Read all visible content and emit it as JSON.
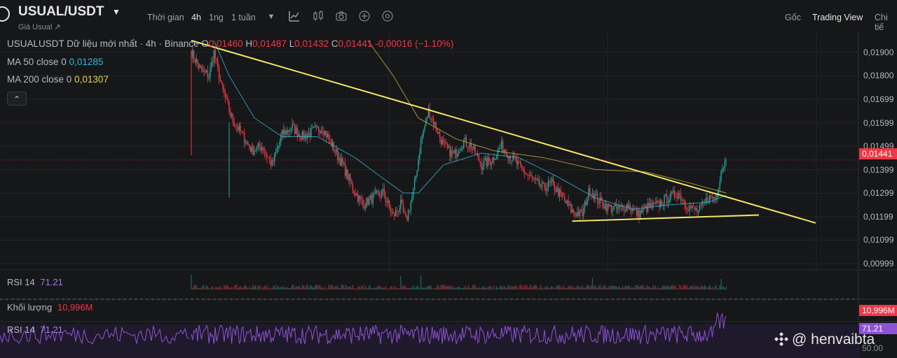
{
  "header": {
    "symbol": "USUAL/USDT",
    "subtitle": "Giá Usual ↗",
    "time_label": "Thời gian",
    "intervals": [
      "4h",
      "1ng",
      "1 tuần"
    ],
    "active_interval": "4h",
    "right_nav": [
      "Gốc",
      "Trading View",
      "Chi tiế"
    ],
    "right_nav_active": "Trading View"
  },
  "legend": {
    "title": "USUALUSDT Dữ liệu mới nhất · 4h · Binance",
    "o_label": "O",
    "o": "0,01460",
    "h_label": "H",
    "h": "0,01487",
    "l_label": "L",
    "l": "0,01432",
    "c_label": "C",
    "c": "0,01441",
    "change": "-0,00016 (−1.10%)",
    "ma50_label": "MA 50 close 0",
    "ma50_value": "0,01285",
    "ma200_label": "MA 200 close 0",
    "ma200_value": "0,01307",
    "collapse": "⌃"
  },
  "panes": {
    "rsi_top_label": "RSI 14",
    "rsi_top_value": "71.21",
    "volume_label": "Khối lượng",
    "volume_value": "10,996M",
    "rsi_label": "RSI 14",
    "rsi_value": "71.21",
    "volume_tag": "10,996M",
    "rsi_tag": "71.21",
    "rsi_50_tag": "50.00"
  },
  "price_axis": {
    "ticks": [
      "0,01900",
      "0,01800",
      "0,01699",
      "0,01599",
      "0,01499",
      "0,01399",
      "0,01299",
      "0,01199",
      "0,01099",
      "0,00999"
    ],
    "current_price": "0,01441"
  },
  "watermark": "@ henvaibta",
  "colors": {
    "up": "#26a69a",
    "down": "#f23645",
    "ma50": "#2fb9d6",
    "ma200": "#c9b441",
    "trendline": "#f5e663",
    "rsi": "#8e52d6"
  },
  "chart_data": {
    "type": "candlestick",
    "title": "USUALUSDT Dữ liệu mới nhất · 4h · Binance",
    "ylim": [
      0.0096,
      0.0195
    ],
    "y_ticks": [
      0.019,
      0.018,
      0.01699,
      0.01599,
      0.01499,
      0.01399,
      0.01299,
      0.01199,
      0.01099,
      0.00999
    ],
    "grid": true,
    "last_close": 0.01441,
    "price_path": [
      [
        0,
        0.019
      ],
      [
        8,
        0.0182
      ],
      [
        14,
        0.018
      ],
      [
        18,
        0.019
      ],
      [
        24,
        0.0175
      ],
      [
        32,
        0.0162
      ],
      [
        40,
        0.0155
      ],
      [
        48,
        0.0148
      ],
      [
        56,
        0.015
      ],
      [
        64,
        0.0142
      ],
      [
        72,
        0.0155
      ],
      [
        80,
        0.0158
      ],
      [
        88,
        0.0154
      ],
      [
        96,
        0.0156
      ],
      [
        104,
        0.0158
      ],
      [
        112,
        0.015
      ],
      [
        120,
        0.0142
      ],
      [
        128,
        0.0132
      ],
      [
        136,
        0.0125
      ],
      [
        144,
        0.0128
      ],
      [
        152,
        0.013
      ],
      [
        160,
        0.012
      ],
      [
        166,
        0.0125
      ],
      [
        170,
        0.0118
      ],
      [
        176,
        0.013
      ],
      [
        182,
        0.0152
      ],
      [
        188,
        0.0165
      ],
      [
        194,
        0.0158
      ],
      [
        200,
        0.015
      ],
      [
        208,
        0.0146
      ],
      [
        216,
        0.0152
      ],
      [
        222,
        0.015
      ],
      [
        230,
        0.0142
      ],
      [
        238,
        0.0144
      ],
      [
        246,
        0.015
      ],
      [
        254,
        0.0145
      ],
      [
        262,
        0.014
      ],
      [
        270,
        0.0136
      ],
      [
        278,
        0.0132
      ],
      [
        286,
        0.0134
      ],
      [
        294,
        0.0128
      ],
      [
        302,
        0.0122
      ],
      [
        310,
        0.0121
      ],
      [
        316,
        0.0132
      ],
      [
        322,
        0.0127
      ],
      [
        330,
        0.0124
      ],
      [
        338,
        0.0123
      ],
      [
        346,
        0.0125
      ],
      [
        354,
        0.0121
      ],
      [
        362,
        0.0124
      ],
      [
        370,
        0.0125
      ],
      [
        378,
        0.0128
      ],
      [
        386,
        0.013
      ],
      [
        394,
        0.0124
      ],
      [
        402,
        0.0122
      ],
      [
        410,
        0.0128
      ],
      [
        416,
        0.0128
      ],
      [
        420,
        0.014
      ],
      [
        424,
        0.0144
      ]
    ],
    "ma50_path": [
      [
        18,
        0.0195
      ],
      [
        30,
        0.018
      ],
      [
        50,
        0.0162
      ],
      [
        72,
        0.0154
      ],
      [
        100,
        0.0154
      ],
      [
        130,
        0.0145
      ],
      [
        150,
        0.0137
      ],
      [
        168,
        0.013
      ],
      [
        180,
        0.013
      ],
      [
        200,
        0.0142
      ],
      [
        230,
        0.0147
      ],
      [
        260,
        0.0145
      ],
      [
        290,
        0.0137
      ],
      [
        320,
        0.0128
      ],
      [
        350,
        0.0123
      ],
      [
        380,
        0.0125
      ],
      [
        410,
        0.0126
      ],
      [
        424,
        0.0129
      ]
    ],
    "ma200_path": [
      [
        140,
        0.0195
      ],
      [
        160,
        0.018
      ],
      [
        180,
        0.0162
      ],
      [
        210,
        0.0153
      ],
      [
        240,
        0.0148
      ],
      [
        280,
        0.0145
      ],
      [
        320,
        0.014
      ],
      [
        360,
        0.0139
      ],
      [
        390,
        0.0135
      ],
      [
        424,
        0.013
      ]
    ],
    "trendlines": [
      {
        "from": [
          0,
          0.0195
        ],
        "to": [
          495,
          0.01172
        ]
      },
      {
        "from": [
          302,
          0.0118
        ],
        "to": [
          450,
          0.01206
        ]
      }
    ],
    "rsi_last": 71.21,
    "volume_last": "10,996M"
  }
}
